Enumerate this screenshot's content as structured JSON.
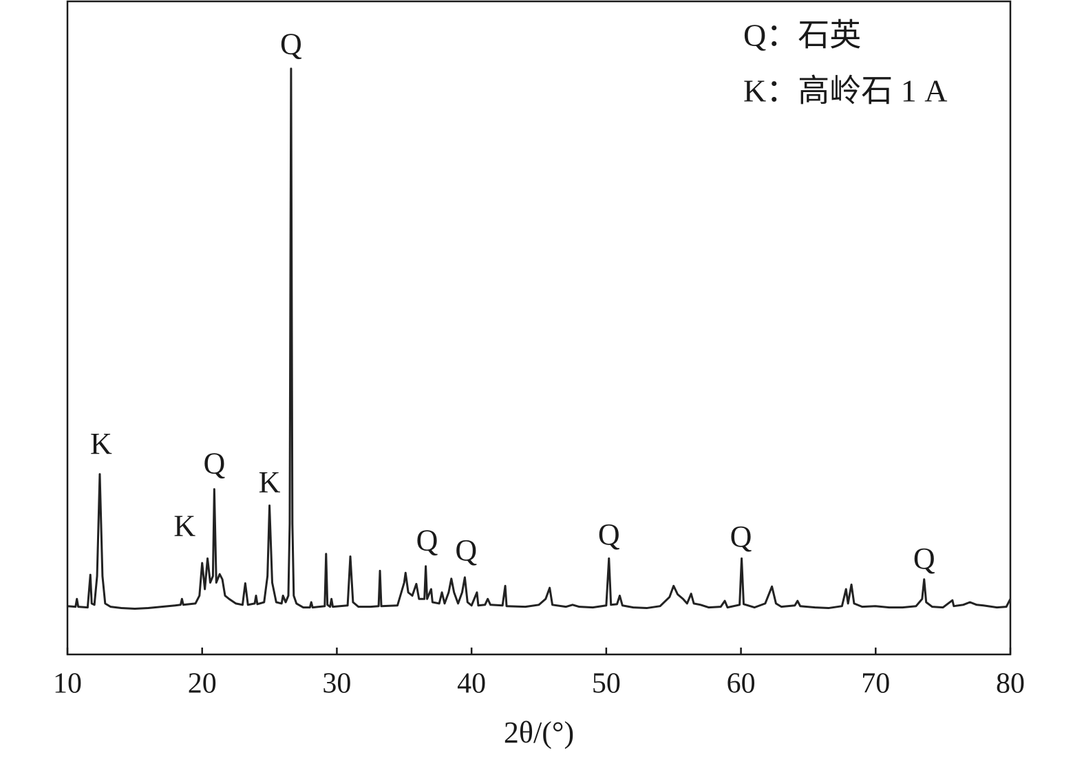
{
  "chart_data": {
    "type": "line",
    "xlabel": "2θ/(°)",
    "xlim": [
      10,
      80
    ],
    "xticks": [
      10,
      20,
      30,
      40,
      50,
      60,
      70,
      80
    ],
    "ylim": [
      0,
      100
    ],
    "color": "#222222",
    "legend_text": [
      "Q：石英",
      "K：高岭石 1 A"
    ],
    "annotations": [
      {
        "text": "K",
        "x": 12.5,
        "y": 31.8
      },
      {
        "text": "K",
        "x": 18.7,
        "y": 19.2
      },
      {
        "text": "Q",
        "x": 20.9,
        "y": 28.8
      },
      {
        "text": "K",
        "x": 25.0,
        "y": 25.9
      },
      {
        "text": "Q",
        "x": 26.6,
        "y": 93
      },
      {
        "text": "Q",
        "x": 36.7,
        "y": 17
      },
      {
        "text": "Q",
        "x": 39.6,
        "y": 15.5
      },
      {
        "text": "Q",
        "x": 50.2,
        "y": 17.9
      },
      {
        "text": "Q",
        "x": 60.0,
        "y": 17.6
      },
      {
        "text": "Q",
        "x": 73.6,
        "y": 14.2
      }
    ],
    "x": [
      10.0,
      10.6,
      10.7,
      10.8,
      11.5,
      11.7,
      11.8,
      12.0,
      12.2,
      12.4,
      12.6,
      12.8,
      13.2,
      14,
      15,
      16,
      17,
      18,
      18.4,
      18.5,
      18.6,
      19.5,
      19.8,
      20.0,
      20.2,
      20.4,
      20.6,
      20.8,
      20.9,
      21.05,
      21.3,
      21.5,
      21.7,
      22.0,
      22.5,
      23.0,
      23.2,
      23.4,
      23.9,
      24.0,
      24.1,
      24.6,
      24.85,
      25.0,
      25.2,
      25.5,
      25.9,
      26.0,
      26.2,
      26.4,
      26.5,
      26.6,
      26.7,
      26.8,
      27.0,
      27.5,
      28,
      28.1,
      28.2,
      29.1,
      29.2,
      29.3,
      29.5,
      29.6,
      29.7,
      30.8,
      31.0,
      31.2,
      31.6,
      32.5,
      33.1,
      33.2,
      33.3,
      34.5,
      35.0,
      35.1,
      35.3,
      35.6,
      35.9,
      36.1,
      36.5,
      36.6,
      36.7,
      37.0,
      37.1,
      37.6,
      37.8,
      38.0,
      38.3,
      38.5,
      38.7,
      39.0,
      39.3,
      39.5,
      39.7,
      40.0,
      40.4,
      40.5,
      41.0,
      41.2,
      41.4,
      42.3,
      42.5,
      42.6,
      44,
      45,
      45.5,
      45.8,
      46.0,
      47.0,
      47.5,
      48,
      49,
      50.0,
      50.2,
      50.35,
      50.8,
      51.0,
      51.2,
      52,
      53,
      54,
      54.7,
      55.0,
      55.3,
      55.7,
      56.0,
      56.3,
      56.5,
      57,
      57.6,
      58.5,
      58.8,
      59.0,
      59.9,
      60.05,
      60.2,
      61,
      61.8,
      62.3,
      62.6,
      63,
      64,
      64.2,
      64.4,
      65.5,
      66.5,
      67.5,
      67.8,
      67.95,
      68.2,
      68.4,
      69,
      70,
      71,
      72,
      73,
      73.45,
      73.6,
      73.75,
      74.2,
      75,
      75.7,
      75.8,
      76.5,
      77,
      77.5,
      78,
      79,
      79.7,
      80
    ],
    "values": [
      7.4,
      7.3,
      8.5,
      7.3,
      7.2,
      12.2,
      7.8,
      7.6,
      12,
      27.6,
      12,
      7.8,
      7.3,
      7.1,
      7.0,
      7.1,
      7.3,
      7.5,
      7.6,
      8.5,
      7.6,
      7.8,
      9,
      14,
      10,
      14.7,
      11,
      12,
      25.3,
      11,
      12.3,
      11.5,
      9,
      8.5,
      7.8,
      7.6,
      10.9,
      7.6,
      7.8,
      9,
      7.7,
      8,
      12,
      22.8,
      11,
      8,
      7.8,
      9,
      8,
      9,
      20,
      89.7,
      20,
      9,
      7.8,
      7.2,
      7.2,
      8,
      7.2,
      7.4,
      15.4,
      7.6,
      7.3,
      8.5,
      7.3,
      7.5,
      15,
      8,
      7.3,
      7.3,
      7.4,
      12.8,
      7.4,
      7.5,
      11,
      12.5,
      9.5,
      9,
      10.8,
      8.5,
      8.5,
      13.5,
      8.5,
      10,
      8,
      7.8,
      9.5,
      7.8,
      9.5,
      11.6,
      9.5,
      7.8,
      9.5,
      11.8,
      8,
      7.5,
      9.5,
      7.5,
      7.6,
      8.5,
      7.6,
      7.5,
      10.5,
      7.4,
      7.3,
      7.6,
      8.5,
      10.2,
      7.6,
      7.3,
      7.6,
      7.3,
      7.2,
      7.5,
      14.7,
      7.6,
      7.7,
      9.0,
      7.5,
      7.2,
      7.1,
      7.4,
      8.8,
      10.5,
      9.2,
      8.5,
      7.8,
      9.3,
      7.8,
      7.6,
      7.2,
      7.3,
      8.2,
      7.2,
      7.6,
      14.7,
      7.7,
      7.2,
      7.8,
      10.4,
      7.8,
      7.3,
      7.5,
      8.2,
      7.4,
      7.2,
      7.1,
      7.4,
      10,
      7.8,
      10.7,
      7.8,
      7.3,
      7.4,
      7.2,
      7.2,
      7.4,
      8.5,
      11.5,
      8,
      7.3,
      7.2,
      8.3,
      7.4,
      7.6,
      8,
      7.6,
      7.5,
      7.2,
      7.3,
      8.5
    ]
  }
}
